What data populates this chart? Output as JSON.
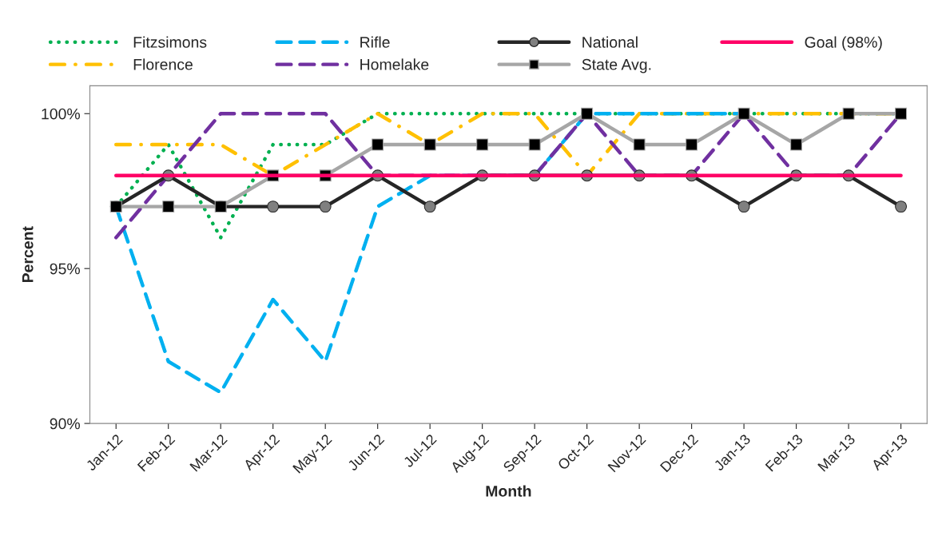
{
  "chart_data": {
    "type": "line",
    "xlabel": "Month",
    "ylabel": "Percent",
    "categories": [
      "Jan-12",
      "Feb-12",
      "Mar-12",
      "Apr-12",
      "May-12",
      "Jun-12",
      "Jul-12",
      "Aug-12",
      "Sep-12",
      "Oct-12",
      "Nov-12",
      "Dec-12",
      "Jan-13",
      "Feb-13",
      "Mar-13",
      "Apr-13"
    ],
    "series": [
      {
        "name": "Fitzsimons",
        "color": "#00b050",
        "line_style": "dotted",
        "marker": "none",
        "values": [
          97,
          99,
          96,
          99,
          99,
          100,
          100,
          100,
          100,
          100,
          100,
          100,
          100,
          100,
          100,
          100
        ]
      },
      {
        "name": "Florence",
        "color": "#ffc000",
        "line_style": "dashdot",
        "marker": "none",
        "values": [
          99,
          99,
          99,
          98,
          99,
          100,
          99,
          100,
          100,
          98,
          100,
          100,
          100,
          100,
          100,
          100
        ]
      },
      {
        "name": "Rifle",
        "color": "#00b0f0",
        "line_style": "dashed",
        "marker": "none",
        "values": [
          97,
          92,
          91,
          94,
          92,
          97,
          98,
          98,
          98,
          100,
          100,
          100,
          100,
          null,
          null,
          null
        ]
      },
      {
        "name": "Homelake",
        "color": "#7030a0",
        "line_style": "dashed",
        "marker": "none",
        "values": [
          96,
          98,
          100,
          100,
          100,
          98,
          98,
          98,
          98,
          100,
          98,
          98,
          100,
          98,
          98,
          100
        ]
      },
      {
        "name": "National",
        "color": "#262626",
        "line_style": "solid",
        "marker": "circle",
        "values": [
          97,
          98,
          97,
          97,
          97,
          98,
          97,
          98,
          98,
          98,
          98,
          98,
          97,
          98,
          98,
          97
        ]
      },
      {
        "name": "State Avg.",
        "color": "#a6a6a6",
        "line_style": "solid",
        "marker": "square",
        "values": [
          97,
          97,
          97,
          98,
          98,
          99,
          99,
          99,
          99,
          100,
          99,
          99,
          100,
          99,
          100,
          100
        ]
      },
      {
        "name": "Goal (98%)",
        "color": "#ff0066",
        "line_style": "solid",
        "marker": "none",
        "values": [
          98,
          98,
          98,
          98,
          98,
          98,
          98,
          98,
          98,
          98,
          98,
          98,
          98,
          98,
          98,
          98
        ]
      }
    ],
    "ylim": [
      90,
      100.9
    ],
    "yticks": [
      {
        "value": 90,
        "label": "90%"
      },
      {
        "value": 95,
        "label": "95%"
      },
      {
        "value": 100,
        "label": "100%"
      }
    ],
    "grid": false,
    "legend": "top"
  }
}
